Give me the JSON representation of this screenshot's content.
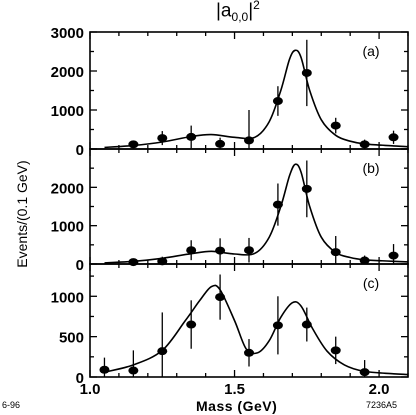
{
  "title": {
    "base": "|a",
    "subscript": "0,0",
    "close": "|",
    "power": "2"
  },
  "ylabel": "Events/(0.1 GeV)",
  "xlabel": "Mass   (GeV)",
  "footer_left": "6-96",
  "footer_right": "7236A5",
  "chart_data": [
    {
      "type": "scatter",
      "panel_label": "(a)",
      "xlim": [
        1.0,
        2.1
      ],
      "ylim": [
        0,
        3000
      ],
      "x_ticks": [
        1.0,
        1.5,
        2.0
      ],
      "y_ticks": [
        0,
        1000,
        2000,
        3000
      ],
      "y_ticklabels": [
        "0",
        "1000",
        "2000",
        "3000"
      ],
      "points": [
        {
          "x": 1.15,
          "y": 120,
          "err": 60
        },
        {
          "x": 1.25,
          "y": 280,
          "err": 180
        },
        {
          "x": 1.35,
          "y": 310,
          "err": 290
        },
        {
          "x": 1.45,
          "y": 130,
          "err": 160
        },
        {
          "x": 1.55,
          "y": 220,
          "err": 780
        },
        {
          "x": 1.65,
          "y": 1230,
          "err": 380
        },
        {
          "x": 1.75,
          "y": 1950,
          "err": 850
        },
        {
          "x": 1.85,
          "y": 600,
          "err": 200
        },
        {
          "x": 1.95,
          "y": 120,
          "err": 120
        },
        {
          "x": 2.05,
          "y": 300,
          "err": 170
        }
      ],
      "fit": [
        [
          1.05,
          40
        ],
        [
          1.15,
          90
        ],
        [
          1.25,
          180
        ],
        [
          1.35,
          320
        ],
        [
          1.42,
          370
        ],
        [
          1.5,
          300
        ],
        [
          1.57,
          300
        ],
        [
          1.62,
          700
        ],
        [
          1.66,
          1500
        ],
        [
          1.69,
          2300
        ],
        [
          1.71,
          2530
        ],
        [
          1.73,
          2350
        ],
        [
          1.76,
          1500
        ],
        [
          1.8,
          750
        ],
        [
          1.85,
          350
        ],
        [
          1.9,
          200
        ],
        [
          1.95,
          130
        ],
        [
          2.05,
          80
        ],
        [
          2.1,
          60
        ]
      ]
    },
    {
      "type": "scatter",
      "panel_label": "(b)",
      "xlim": [
        1.0,
        2.1
      ],
      "ylim": [
        0,
        3000
      ],
      "x_ticks": [
        1.0,
        1.5,
        2.0
      ],
      "y_ticks": [
        0,
        1000,
        2000
      ],
      "y_ticklabels": [
        "0",
        "1000",
        "2000"
      ],
      "points": [
        {
          "x": 1.15,
          "y": 50,
          "err": 50
        },
        {
          "x": 1.25,
          "y": 70,
          "err": 120
        },
        {
          "x": 1.35,
          "y": 360,
          "err": 260
        },
        {
          "x": 1.45,
          "y": 350,
          "err": 320
        },
        {
          "x": 1.55,
          "y": 360,
          "err": 320
        },
        {
          "x": 1.65,
          "y": 1550,
          "err": 550
        },
        {
          "x": 1.75,
          "y": 1960,
          "err": 740
        },
        {
          "x": 1.85,
          "y": 310,
          "err": 420
        },
        {
          "x": 1.95,
          "y": 90,
          "err": 130
        },
        {
          "x": 2.05,
          "y": 220,
          "err": 300
        }
      ],
      "fit": [
        [
          1.05,
          30
        ],
        [
          1.15,
          70
        ],
        [
          1.25,
          150
        ],
        [
          1.35,
          270
        ],
        [
          1.42,
          330
        ],
        [
          1.5,
          260
        ],
        [
          1.57,
          280
        ],
        [
          1.62,
          700
        ],
        [
          1.66,
          1500
        ],
        [
          1.69,
          2300
        ],
        [
          1.71,
          2600
        ],
        [
          1.73,
          2400
        ],
        [
          1.76,
          1500
        ],
        [
          1.8,
          700
        ],
        [
          1.85,
          300
        ],
        [
          1.9,
          170
        ],
        [
          1.95,
          110
        ],
        [
          2.05,
          70
        ],
        [
          2.1,
          55
        ]
      ]
    },
    {
      "type": "scatter",
      "panel_label": "(c)",
      "xlim": [
        1.0,
        2.1
      ],
      "ylim": [
        0,
        1400
      ],
      "x_ticks": [
        1.0,
        1.5,
        2.0
      ],
      "x_ticklabels": [
        "1.0",
        "1.5",
        "2.0"
      ],
      "y_ticks": [
        0,
        500,
        1000
      ],
      "y_ticklabels": [
        "0",
        "500",
        "1000"
      ],
      "points": [
        {
          "x": 1.05,
          "y": 90,
          "err": 150
        },
        {
          "x": 1.15,
          "y": 80,
          "err": 250
        },
        {
          "x": 1.25,
          "y": 320,
          "err": 480
        },
        {
          "x": 1.35,
          "y": 650,
          "err": 300
        },
        {
          "x": 1.45,
          "y": 990,
          "err": 280
        },
        {
          "x": 1.55,
          "y": 300,
          "err": 170
        },
        {
          "x": 1.65,
          "y": 640,
          "err": 360
        },
        {
          "x": 1.75,
          "y": 650,
          "err": 210
        },
        {
          "x": 1.85,
          "y": 330,
          "err": 170
        },
        {
          "x": 1.95,
          "y": 60,
          "err": 150
        }
      ],
      "fit": [
        [
          1.05,
          60
        ],
        [
          1.15,
          150
        ],
        [
          1.25,
          330
        ],
        [
          1.33,
          700
        ],
        [
          1.38,
          950
        ],
        [
          1.42,
          1120
        ],
        [
          1.45,
          1080
        ],
        [
          1.5,
          700
        ],
        [
          1.54,
          350
        ],
        [
          1.58,
          300
        ],
        [
          1.62,
          450
        ],
        [
          1.66,
          740
        ],
        [
          1.7,
          920
        ],
        [
          1.73,
          880
        ],
        [
          1.77,
          600
        ],
        [
          1.82,
          320
        ],
        [
          1.88,
          150
        ],
        [
          1.95,
          70
        ],
        [
          2.05,
          40
        ],
        [
          2.1,
          30
        ]
      ]
    }
  ]
}
